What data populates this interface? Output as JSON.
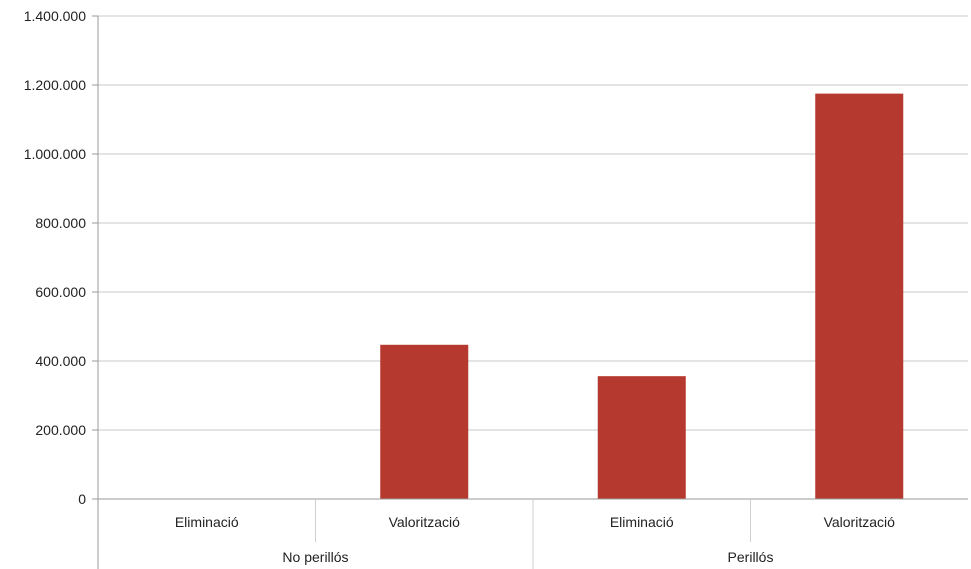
{
  "chart_data": {
    "type": "bar",
    "categories": [
      {
        "label": "Eliminació",
        "group": "No perillós"
      },
      {
        "label": "Valorització",
        "group": "No perillós"
      },
      {
        "label": "Eliminació",
        "group": "Perillós"
      },
      {
        "label": "Valorització",
        "group": "Perillós"
      }
    ],
    "groups": [
      "No perillós",
      "Perillós"
    ],
    "values": [
      0,
      447000,
      356000,
      1175000
    ],
    "ylim": [
      0,
      1400000
    ],
    "yticks": [
      0,
      200000,
      400000,
      600000,
      800000,
      1000000,
      1200000,
      1400000
    ],
    "ytick_labels": [
      "0",
      "200.000",
      "400.000",
      "600.000",
      "800.000",
      "1.000.000",
      "1.200.000",
      "1.400.000"
    ],
    "bar_color": "#b5392e",
    "grid": true,
    "title": "",
    "xlabel": "",
    "ylabel": ""
  }
}
